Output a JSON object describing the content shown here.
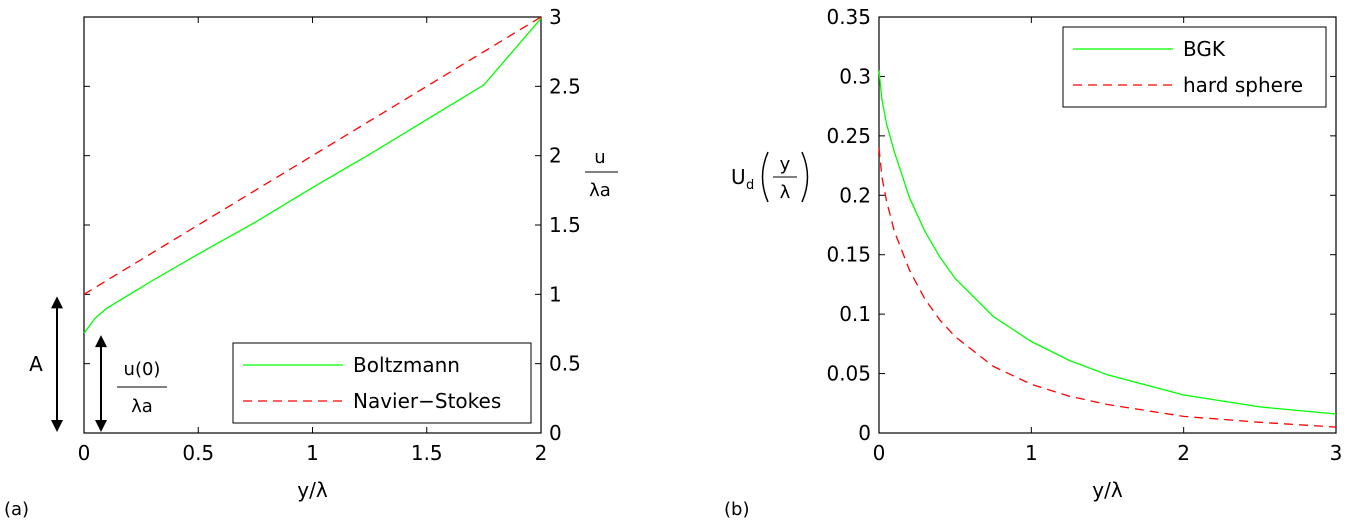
{
  "panel_labels": {
    "a": "(a)",
    "b": "(b)"
  },
  "colors": {
    "solid_series": "#00ff00",
    "dashed_series": "#ff0000",
    "axes": "#000000",
    "background": "#ffffff"
  },
  "icons": [
    "double-arrow-icon"
  ],
  "panel_a": {
    "right_axis_label": {
      "numerator": "u",
      "denominator": "λa"
    },
    "annotations": {
      "A": {
        "text": "A",
        "y_from": 0,
        "y_to": 1.0
      },
      "u0": {
        "numerator": "u(0)",
        "denominator": "λa",
        "y_from": 0,
        "y_to": 0.72
      }
    }
  },
  "panel_b": {
    "ylabel": {
      "prefix": "U",
      "subscript": "d",
      "numerator": "y",
      "denominator": "λ"
    }
  },
  "chart_data": [
    {
      "type": "line",
      "xlabel": "y/λ",
      "ylabel": "",
      "xlim": [
        0,
        2
      ],
      "ylim": [
        0,
        3
      ],
      "xticks": [
        0,
        0.5,
        1,
        1.5,
        2
      ],
      "xtick_labels": [
        "0",
        "0.5",
        "1",
        "1.5",
        "2"
      ],
      "yticks": [
        0,
        0.5,
        1,
        1.5,
        2,
        2.5,
        3
      ],
      "ytick_labels": [
        "0",
        "0.5",
        "1",
        "1.5",
        "2",
        "2.5",
        "3"
      ],
      "yaxis_side": "right",
      "grid": false,
      "legend_position": "bottom-right",
      "series": [
        {
          "name": "Boltzmann",
          "color": "#00ff00",
          "style": "solid",
          "x": [
            0,
            0.05,
            0.1,
            0.2,
            0.3,
            0.5,
            0.75,
            1.0,
            1.25,
            1.5,
            1.75,
            2.0
          ],
          "y": [
            0.72,
            0.83,
            0.9,
            1.0,
            1.1,
            1.29,
            1.52,
            1.77,
            2.01,
            2.26,
            2.51,
            2.99
          ]
        },
        {
          "name": "Navier−Stokes",
          "color": "#ff0000",
          "style": "dashed",
          "x": [
            0,
            2
          ],
          "y": [
            1.0,
            3.0
          ]
        }
      ]
    },
    {
      "type": "line",
      "xlabel": "y/λ",
      "ylabel": "",
      "xlim": [
        0,
        3
      ],
      "ylim": [
        0,
        0.35
      ],
      "xticks": [
        0,
        1,
        2,
        3
      ],
      "xtick_labels": [
        "0",
        "1",
        "2",
        "3"
      ],
      "yticks": [
        0,
        0.05,
        0.1,
        0.15,
        0.2,
        0.25,
        0.3,
        0.35
      ],
      "ytick_labels": [
        "0",
        "0.05",
        "0.1",
        "0.15",
        "0.2",
        "0.25",
        "0.3",
        "0.35"
      ],
      "yaxis_side": "left",
      "grid": false,
      "legend_position": "top-right",
      "series": [
        {
          "name": "BGK",
          "color": "#00ff00",
          "style": "solid",
          "x": [
            0,
            0.02,
            0.05,
            0.1,
            0.2,
            0.3,
            0.4,
            0.5,
            0.75,
            1.0,
            1.25,
            1.5,
            2.0,
            2.5,
            3.0
          ],
          "y": [
            0.305,
            0.28,
            0.26,
            0.237,
            0.198,
            0.17,
            0.148,
            0.13,
            0.098,
            0.077,
            0.061,
            0.049,
            0.032,
            0.022,
            0.016
          ]
        },
        {
          "name": "hard sphere",
          "color": "#ff0000",
          "style": "dashed",
          "x": [
            0,
            0.02,
            0.05,
            0.1,
            0.2,
            0.3,
            0.4,
            0.5,
            0.75,
            1.0,
            1.25,
            1.5,
            2.0,
            2.5,
            3.0
          ],
          "y": [
            0.24,
            0.215,
            0.195,
            0.17,
            0.137,
            0.113,
            0.095,
            0.081,
            0.056,
            0.041,
            0.031,
            0.024,
            0.014,
            0.009,
            0.005
          ]
        }
      ]
    }
  ]
}
